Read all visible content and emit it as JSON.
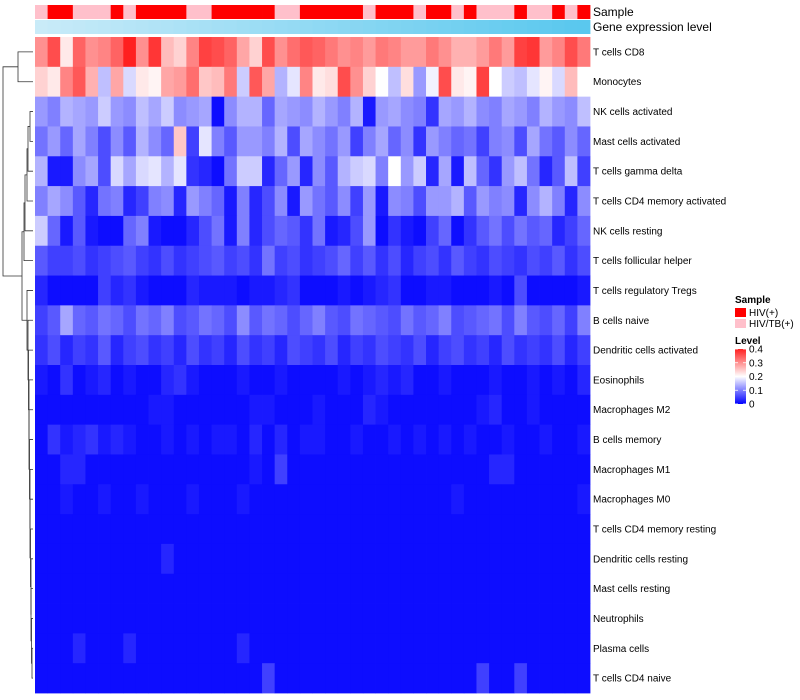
{
  "chart_data": {
    "type": "heatmap",
    "title": "",
    "rows": [
      "T cells CD8",
      "Monocytes",
      "NK cells activated",
      "Mast cells activated",
      "T cells gamma delta",
      "T cells CD4 memory activated",
      "NK cells resting",
      "T cells follicular helper",
      "T cells regulatory  Tregs",
      "B cells naive",
      "Dendritic cells activated",
      "Eosinophils",
      "Macrophages M2",
      "B cells memory",
      "Macrophages M1",
      "Macrophages M0",
      "T cells CD4 memory resting",
      "Dendritic cells resting",
      "Mast cells resting",
      "Neutrophils",
      "Plasma cells",
      "T cells CD4 naive"
    ],
    "n_columns": 44,
    "sample_groups": [
      0,
      1,
      1,
      0,
      0,
      0,
      1,
      0,
      1,
      1,
      1,
      1,
      0,
      0,
      1,
      1,
      1,
      1,
      1,
      0,
      0,
      1,
      1,
      1,
      1,
      1,
      0,
      1,
      1,
      1,
      0,
      1,
      1,
      0,
      1,
      0,
      0,
      0,
      1,
      0,
      0,
      1,
      0,
      1
    ],
    "gene_expression_level": [
      0.85,
      0.83,
      0.81,
      0.79,
      0.77,
      0.75,
      0.73,
      0.71,
      0.69,
      0.67,
      0.65,
      0.63,
      0.61,
      0.59,
      0.57,
      0.55,
      0.53,
      0.51,
      0.49,
      0.47,
      0.45,
      0.43,
      0.41,
      0.39,
      0.37,
      0.35,
      0.33,
      0.31,
      0.29,
      0.27,
      0.25,
      0.23,
      0.21,
      0.19,
      0.17,
      0.15,
      0.13,
      0.11,
      0.09,
      0.07,
      0.05,
      0.03,
      0.01,
      0.0
    ],
    "values": [
      [
        0.3,
        0.36,
        0.22,
        0.34,
        0.3,
        0.31,
        0.34,
        0.4,
        0.3,
        0.38,
        0.26,
        0.24,
        0.31,
        0.37,
        0.36,
        0.34,
        0.28,
        0.24,
        0.36,
        0.3,
        0.33,
        0.35,
        0.34,
        0.32,
        0.3,
        0.31,
        0.29,
        0.32,
        0.31,
        0.29,
        0.29,
        0.32,
        0.3,
        0.27,
        0.27,
        0.29,
        0.32,
        0.29,
        0.37,
        0.38,
        0.29,
        0.31,
        0.36,
        0.32
      ],
      [
        0.24,
        0.22,
        0.31,
        0.35,
        0.27,
        0.15,
        0.28,
        0.17,
        0.22,
        0.21,
        0.28,
        0.29,
        0.33,
        0.25,
        0.26,
        0.32,
        0.16,
        0.35,
        0.28,
        0.14,
        0.18,
        0.31,
        0.22,
        0.23,
        0.36,
        0.3,
        0.24,
        0.2,
        0.15,
        0.23,
        0.12,
        0.19,
        0.36,
        0.22,
        0.21,
        0.37,
        0.2,
        0.16,
        0.15,
        0.18,
        0.21,
        0.17,
        0.26,
        0.2
      ],
      [
        0.12,
        0.1,
        0.14,
        0.13,
        0.12,
        0.16,
        0.12,
        0.11,
        0.15,
        0.13,
        0.16,
        0.11,
        0.12,
        0.13,
        0.01,
        0.11,
        0.14,
        0.14,
        0.08,
        0.13,
        0.12,
        0.11,
        0.14,
        0.12,
        0.1,
        0.14,
        0.02,
        0.12,
        0.13,
        0.11,
        0.1,
        0.04,
        0.13,
        0.12,
        0.14,
        0.11,
        0.1,
        0.13,
        0.12,
        0.1,
        0.14,
        0.12,
        0.11,
        0.15
      ],
      [
        0.09,
        0.12,
        0.08,
        0.13,
        0.1,
        0.06,
        0.11,
        0.07,
        0.14,
        0.11,
        0.08,
        0.25,
        0.05,
        0.18,
        0.1,
        0.07,
        0.12,
        0.12,
        0.1,
        0.14,
        0.06,
        0.13,
        0.11,
        0.09,
        0.12,
        0.05,
        0.1,
        0.13,
        0.08,
        0.11,
        0.04,
        0.12,
        0.1,
        0.08,
        0.09,
        0.05,
        0.1,
        0.11,
        0.06,
        0.13,
        0.09,
        0.07,
        0.11,
        0.08
      ],
      [
        0.14,
        0.02,
        0.02,
        0.11,
        0.13,
        0.06,
        0.17,
        0.13,
        0.17,
        0.18,
        0.14,
        0.18,
        0.04,
        0.03,
        0.01,
        0.09,
        0.16,
        0.16,
        0.03,
        0.08,
        0.12,
        0.03,
        0.11,
        0.07,
        0.14,
        0.16,
        0.17,
        0.1,
        0.2,
        0.12,
        0.16,
        0.03,
        0.13,
        0.02,
        0.15,
        0.08,
        0.04,
        0.12,
        0.15,
        0.09,
        0.03,
        0.07,
        0.15,
        0.05
      ],
      [
        0.1,
        0.13,
        0.11,
        0.07,
        0.03,
        0.09,
        0.1,
        0.03,
        0.05,
        0.1,
        0.11,
        0.03,
        0.12,
        0.1,
        0.08,
        0.02,
        0.1,
        0.03,
        0.06,
        0.11,
        0.02,
        0.12,
        0.09,
        0.07,
        0.11,
        0.05,
        0.12,
        0.02,
        0.11,
        0.1,
        0.06,
        0.12,
        0.12,
        0.14,
        0.07,
        0.12,
        0.1,
        0.11,
        0.03,
        0.11,
        0.14,
        0.1,
        0.03,
        0.11
      ],
      [
        0.16,
        0.08,
        0.02,
        0.07,
        0.02,
        0.01,
        0.01,
        0.08,
        0.1,
        0.02,
        0.01,
        0.01,
        0.03,
        0.06,
        0.09,
        0.02,
        0.1,
        0.03,
        0.06,
        0.08,
        0.07,
        0.04,
        0.09,
        0.02,
        0.03,
        0.06,
        0.12,
        0.01,
        0.04,
        0.02,
        0.01,
        0.05,
        0.08,
        0.01,
        0.04,
        0.07,
        0.09,
        0.06,
        0.09,
        0.07,
        0.08,
        0.03,
        0.05,
        0.08
      ],
      [
        0.07,
        0.05,
        0.05,
        0.06,
        0.04,
        0.05,
        0.06,
        0.07,
        0.05,
        0.04,
        0.06,
        0.04,
        0.05,
        0.06,
        0.07,
        0.05,
        0.06,
        0.04,
        0.09,
        0.05,
        0.06,
        0.04,
        0.05,
        0.06,
        0.08,
        0.05,
        0.07,
        0.04,
        0.06,
        0.03,
        0.05,
        0.06,
        0.04,
        0.07,
        0.05,
        0.04,
        0.06,
        0.05,
        0.04,
        0.06,
        0.05,
        0.07,
        0.04,
        0.06
      ],
      [
        0.03,
        0.01,
        0.01,
        0.01,
        0.01,
        0.05,
        0.03,
        0.04,
        0.02,
        0.01,
        0.01,
        0.01,
        0.03,
        0.02,
        0.02,
        0.02,
        0.01,
        0.02,
        0.02,
        0.03,
        0.04,
        0.01,
        0.01,
        0.01,
        0.02,
        0.01,
        0.02,
        0.03,
        0.04,
        0.01,
        0.01,
        0.02,
        0.02,
        0.01,
        0.01,
        0.01,
        0.02,
        0.01,
        0.06,
        0.01,
        0.01,
        0.01,
        0.01,
        0.02
      ],
      [
        0.05,
        0.07,
        0.13,
        0.08,
        0.07,
        0.09,
        0.08,
        0.06,
        0.09,
        0.08,
        0.1,
        0.06,
        0.07,
        0.09,
        0.08,
        0.06,
        0.11,
        0.07,
        0.09,
        0.08,
        0.06,
        0.08,
        0.1,
        0.07,
        0.06,
        0.09,
        0.08,
        0.07,
        0.06,
        0.09,
        0.07,
        0.08,
        0.1,
        0.06,
        0.07,
        0.08,
        0.09,
        0.06,
        0.1,
        0.07,
        0.06,
        0.08,
        0.05,
        0.1
      ],
      [
        0.04,
        0.06,
        0.03,
        0.05,
        0.04,
        0.07,
        0.03,
        0.05,
        0.06,
        0.04,
        0.05,
        0.03,
        0.06,
        0.04,
        0.05,
        0.03,
        0.06,
        0.04,
        0.05,
        0.03,
        0.06,
        0.05,
        0.04,
        0.06,
        0.03,
        0.05,
        0.04,
        0.06,
        0.05,
        0.04,
        0.06,
        0.03,
        0.05,
        0.06,
        0.04,
        0.05,
        0.03,
        0.06,
        0.04,
        0.05,
        0.04,
        0.06,
        0.03,
        0.05
      ],
      [
        0.02,
        0.01,
        0.04,
        0.01,
        0.02,
        0.03,
        0.01,
        0.02,
        0.01,
        0.01,
        0.03,
        0.04,
        0.02,
        0.01,
        0.01,
        0.01,
        0.02,
        0.01,
        0.01,
        0.02,
        0.01,
        0.01,
        0.01,
        0.01,
        0.02,
        0.01,
        0.02,
        0.03,
        0.02,
        0.03,
        0.01,
        0.01,
        0.02,
        0.01,
        0.01,
        0.01,
        0.02,
        0.01,
        0.01,
        0.02,
        0.01,
        0.02,
        0.01,
        0.03
      ],
      [
        0.01,
        0.01,
        0.01,
        0.01,
        0.01,
        0.01,
        0.01,
        0.01,
        0.01,
        0.02,
        0.02,
        0.01,
        0.01,
        0.01,
        0.01,
        0.01,
        0.01,
        0.02,
        0.02,
        0.01,
        0.01,
        0.01,
        0.02,
        0.01,
        0.01,
        0.01,
        0.03,
        0.02,
        0.01,
        0.01,
        0.01,
        0.01,
        0.01,
        0.01,
        0.01,
        0.02,
        0.03,
        0.01,
        0.01,
        0.02,
        0.01,
        0.01,
        0.01,
        0.01
      ],
      [
        0.01,
        0.04,
        0.02,
        0.03,
        0.04,
        0.02,
        0.03,
        0.02,
        0.01,
        0.01,
        0.02,
        0.01,
        0.02,
        0.01,
        0.02,
        0.02,
        0.01,
        0.03,
        0.01,
        0.03,
        0.01,
        0.02,
        0.02,
        0.01,
        0.01,
        0.02,
        0.01,
        0.01,
        0.02,
        0.01,
        0.02,
        0.01,
        0.02,
        0.01,
        0.02,
        0.01,
        0.01,
        0.02,
        0.01,
        0.01,
        0.02,
        0.01,
        0.01,
        0.02
      ],
      [
        0.01,
        0.01,
        0.03,
        0.03,
        0.01,
        0.01,
        0.01,
        0.01,
        0.01,
        0.01,
        0.01,
        0.01,
        0.01,
        0.01,
        0.01,
        0.01,
        0.01,
        0.02,
        0.01,
        0.05,
        0.01,
        0.01,
        0.01,
        0.01,
        0.01,
        0.01,
        0.01,
        0.01,
        0.01,
        0.01,
        0.01,
        0.01,
        0.01,
        0.01,
        0.01,
        0.01,
        0.03,
        0.03,
        0.01,
        0.01,
        0.01,
        0.01,
        0.01,
        0.01
      ],
      [
        0.01,
        0.01,
        0.02,
        0.01,
        0.01,
        0.02,
        0.01,
        0.01,
        0.02,
        0.01,
        0.01,
        0.01,
        0.02,
        0.01,
        0.01,
        0.01,
        0.02,
        0.01,
        0.01,
        0.01,
        0.01,
        0.01,
        0.01,
        0.01,
        0.01,
        0.01,
        0.01,
        0.01,
        0.01,
        0.01,
        0.01,
        0.01,
        0.01,
        0.02,
        0.01,
        0.01,
        0.01,
        0.01,
        0.01,
        0.01,
        0.01,
        0.01,
        0.01,
        0.02
      ],
      [
        0.01,
        0.01,
        0.01,
        0.01,
        0.01,
        0.01,
        0.01,
        0.01,
        0.01,
        0.01,
        0.01,
        0.01,
        0.01,
        0.01,
        0.01,
        0.01,
        0.01,
        0.01,
        0.01,
        0.01,
        0.01,
        0.01,
        0.01,
        0.01,
        0.01,
        0.01,
        0.01,
        0.01,
        0.01,
        0.01,
        0.01,
        0.01,
        0.01,
        0.01,
        0.01,
        0.01,
        0.01,
        0.01,
        0.01,
        0.01,
        0.01,
        0.01,
        0.01,
        0.01
      ],
      [
        0.01,
        0.01,
        0.01,
        0.01,
        0.01,
        0.01,
        0.01,
        0.01,
        0.01,
        0.01,
        0.03,
        0.01,
        0.01,
        0.01,
        0.01,
        0.01,
        0.01,
        0.01,
        0.01,
        0.01,
        0.01,
        0.01,
        0.01,
        0.01,
        0.01,
        0.01,
        0.01,
        0.01,
        0.01,
        0.01,
        0.01,
        0.01,
        0.01,
        0.01,
        0.01,
        0.01,
        0.01,
        0.01,
        0.01,
        0.01,
        0.01,
        0.01,
        0.01,
        0.01
      ],
      [
        0.01,
        0.01,
        0.01,
        0.01,
        0.01,
        0.01,
        0.01,
        0.01,
        0.01,
        0.01,
        0.01,
        0.01,
        0.01,
        0.01,
        0.01,
        0.01,
        0.01,
        0.01,
        0.01,
        0.01,
        0.01,
        0.01,
        0.01,
        0.01,
        0.01,
        0.01,
        0.01,
        0.01,
        0.01,
        0.01,
        0.01,
        0.01,
        0.01,
        0.01,
        0.01,
        0.01,
        0.01,
        0.01,
        0.01,
        0.01,
        0.01,
        0.01,
        0.01,
        0.01
      ],
      [
        0.01,
        0.01,
        0.01,
        0.01,
        0.01,
        0.01,
        0.01,
        0.01,
        0.01,
        0.01,
        0.01,
        0.01,
        0.01,
        0.01,
        0.01,
        0.01,
        0.01,
        0.01,
        0.01,
        0.01,
        0.01,
        0.01,
        0.01,
        0.01,
        0.01,
        0.01,
        0.01,
        0.01,
        0.01,
        0.01,
        0.01,
        0.01,
        0.01,
        0.01,
        0.01,
        0.01,
        0.01,
        0.01,
        0.01,
        0.01,
        0.01,
        0.01,
        0.01,
        0.01
      ],
      [
        0.01,
        0.01,
        0.01,
        0.03,
        0.01,
        0.01,
        0.01,
        0.03,
        0.01,
        0.01,
        0.01,
        0.01,
        0.01,
        0.01,
        0.01,
        0.01,
        0.03,
        0.01,
        0.01,
        0.01,
        0.01,
        0.01,
        0.01,
        0.01,
        0.01,
        0.01,
        0.01,
        0.01,
        0.01,
        0.01,
        0.01,
        0.01,
        0.01,
        0.01,
        0.01,
        0.01,
        0.01,
        0.01,
        0.01,
        0.01,
        0.01,
        0.01,
        0.01,
        0.01
      ],
      [
        0.01,
        0.01,
        0.01,
        0.01,
        0.01,
        0.01,
        0.01,
        0.01,
        0.01,
        0.01,
        0.01,
        0.01,
        0.01,
        0.01,
        0.01,
        0.01,
        0.01,
        0.01,
        0.05,
        0.01,
        0.01,
        0.01,
        0.01,
        0.01,
        0.01,
        0.01,
        0.01,
        0.01,
        0.01,
        0.01,
        0.01,
        0.01,
        0.01,
        0.01,
        0.01,
        0.05,
        0.01,
        0.01,
        0.05,
        0.01,
        0.01,
        0.01,
        0.01,
        0.01
      ]
    ],
    "annotations": {
      "sample_label": "Sample",
      "gene_label": "Gene expression level"
    },
    "legend": {
      "sample_title": "Sample",
      "sample_entries": [
        "HIV(+)",
        "HIV/TB(+)"
      ],
      "level_title": "Level",
      "level_ticks": [
        "0.4",
        "0.3",
        "0.2",
        "0.1",
        "0"
      ],
      "level_range": [
        0,
        0.4
      ]
    }
  },
  "colors": {
    "hiv": "#ff0000",
    "hivtb": "#ffc0cb",
    "low": "#0000ff",
    "mid": "#ffffff",
    "high": "#ff2020",
    "gene_light": "#dcf1fa",
    "gene_dark": "#5ac8ee",
    "dendrogram": "#333333"
  }
}
